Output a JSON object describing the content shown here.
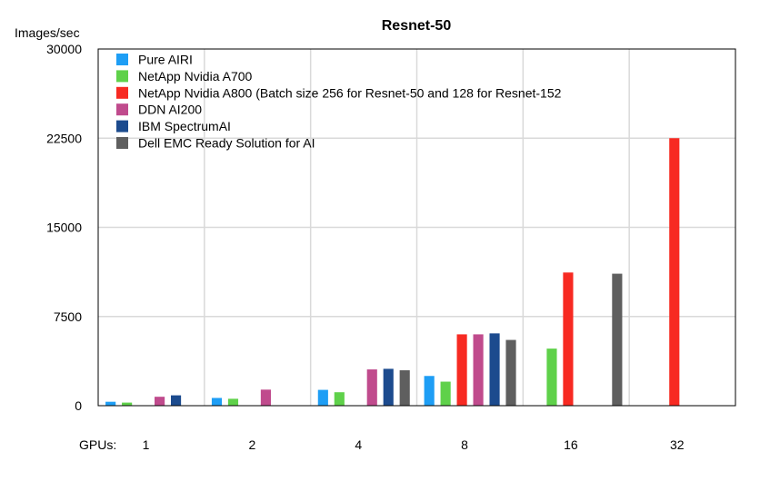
{
  "chart_data": {
    "type": "bar",
    "title": "Resnet-50",
    "ylabel": "Images/sec",
    "xlabel": "GPUs:",
    "ylim": [
      0,
      30000
    ],
    "yticks": [
      0,
      7500,
      15000,
      22500,
      30000
    ],
    "grid": true,
    "legend_position": "top-left",
    "categories": [
      "1",
      "2",
      "4",
      "8",
      "16",
      "32"
    ],
    "series": [
      {
        "name": "Pure AIRI",
        "color": "#1e9ef5",
        "values": [
          330,
          650,
          1330,
          2500,
          null,
          null
        ]
      },
      {
        "name": "NetApp Nvidia A700",
        "color": "#5fd14a",
        "values": [
          260,
          580,
          1130,
          2020,
          4800,
          null
        ]
      },
      {
        "name": "NetApp Nvidia A800 (Batch size 256 for Resnet-50 and 128 for Resnet-152",
        "color": "#f72a22",
        "values": [
          null,
          null,
          null,
          6000,
          11200,
          22500
        ]
      },
      {
        "name": "DDN AI200",
        "color": "#c04b8d",
        "values": [
          750,
          1350,
          3050,
          6000,
          null,
          null
        ]
      },
      {
        "name": "IBM SpectrumAI",
        "color": "#1c4b8e",
        "values": [
          870,
          null,
          3100,
          6080,
          null,
          null
        ]
      },
      {
        "name": "Dell EMC Ready Solution for AI",
        "color": "#5f5f5f",
        "values": [
          null,
          null,
          2980,
          5530,
          11100,
          null
        ]
      }
    ]
  }
}
